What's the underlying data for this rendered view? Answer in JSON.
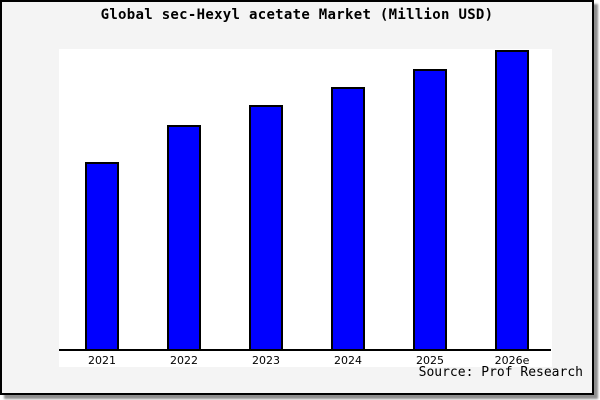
{
  "title": "Global sec-Hexyl acetate Market (Million USD)",
  "source_credit": "Source: Prof Research",
  "colors": {
    "figure_bg": "#f4f4f4",
    "plot_bg": "#ffffff",
    "frame_border": "#000000",
    "shadow": "#8d8d8d",
    "axis": "#000000",
    "text": "#000000",
    "bar_fill": "#0000ff",
    "bar_border": "#000000"
  },
  "chart_data": {
    "type": "bar",
    "title": "Global sec-Hexyl acetate Market (Million USD)",
    "xlabel": "",
    "ylabel": "",
    "categories": [
      "2021",
      "2022",
      "2023",
      "2024",
      "2025",
      "2026e"
    ],
    "values": [
      189,
      226,
      246,
      264,
      282,
      301
    ],
    "value_note": "y-axis has no ticks or labels; values are relative bar heights read from the image (pixels above baseline)",
    "ylim": [
      0,
      318
    ],
    "grid": false,
    "legend": false,
    "bar_color": "#0000ff",
    "bar_border_color": "#000000",
    "baseline_axis": "x-axis line only, no y-axis line, no plot frame"
  }
}
